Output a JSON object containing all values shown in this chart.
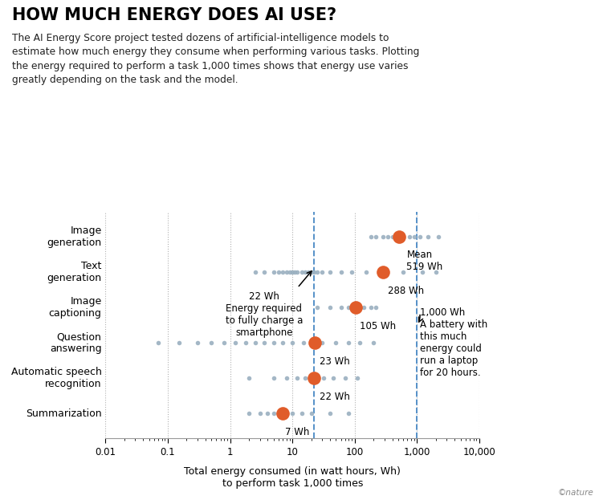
{
  "title": "HOW MUCH ENERGY DOES AI USE?",
  "subtitle": "The AI Energy Score project tested dozens of artificial-intelligence models to\nestimate how much energy they consume when performing various tasks. Plotting\nthe energy required to perform a task 1,000 times shows that energy use varies\ngreatly depending on the task and the model.",
  "xlabel_line1": "Total energy consumed (in watt hours, Wh)",
  "xlabel_line2": "to perform task 1,000 times",
  "watermark": "©nature",
  "categories": [
    "Image\ngeneration",
    "Text\ngeneration",
    "Image\ncaptioning",
    "Question\nanswering",
    "Automatic speech\nrecognition",
    "Summarization"
  ],
  "mean_values": [
    519,
    288,
    105,
    23,
    22,
    7
  ],
  "scatter_data": {
    "Image\ngeneration": [
      180,
      220,
      280,
      340,
      400,
      500,
      600,
      750,
      900,
      1100,
      1500,
      2200
    ],
    "Text\ngeneration": [
      2.5,
      3.5,
      5,
      6,
      7,
      8,
      9,
      10,
      11,
      12,
      14,
      16,
      18,
      20,
      22,
      25,
      30,
      40,
      60,
      90,
      150,
      300,
      600,
      1200,
      2000
    ],
    "Image\ncaptioning": [
      25,
      40,
      60,
      80,
      110,
      140,
      180,
      220
    ],
    "Question\nanswering": [
      0.07,
      0.15,
      0.3,
      0.5,
      0.8,
      1.2,
      1.8,
      2.5,
      3.5,
      5,
      7,
      10,
      15,
      20,
      30,
      50,
      80,
      120,
      200
    ],
    "Automatic speech\nrecognition": [
      2,
      5,
      8,
      12,
      16,
      20,
      25,
      32,
      45,
      70,
      110
    ],
    "Summarization": [
      2,
      3,
      4,
      5,
      6,
      7,
      8,
      10,
      14,
      20,
      40,
      80
    ]
  },
  "vline_22": 22,
  "vline_1000": 1000,
  "mean_color": "#e05c2a",
  "scatter_color": "#9ab0c0",
  "vline_color": "#5590c8",
  "xlim_left": 0.01,
  "xlim_right": 10000,
  "grid_lines": [
    0.01,
    0.1,
    1,
    10,
    100,
    1000,
    10000
  ]
}
